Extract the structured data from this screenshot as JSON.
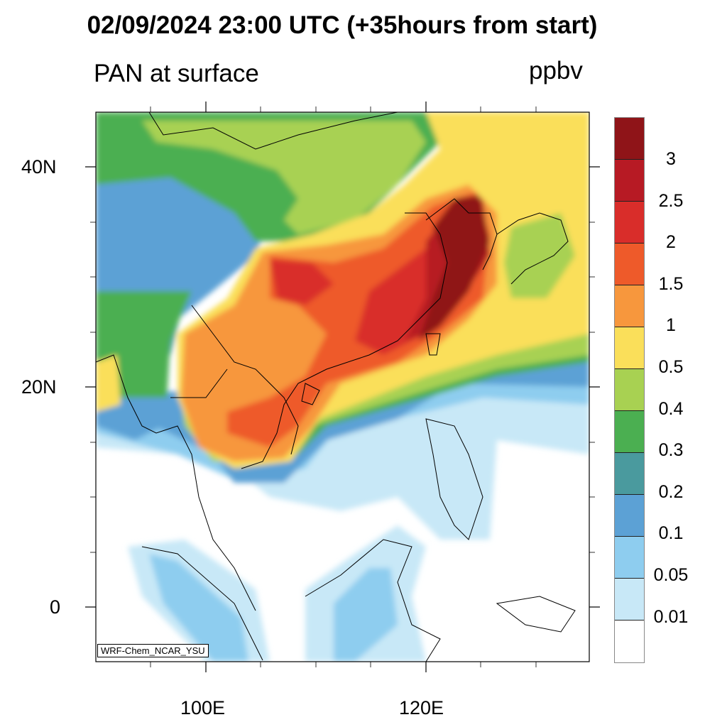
{
  "title": "02/09/2024 23:00 UTC (+35hours from start)",
  "subtitle_left": "PAN at surface",
  "subtitle_right": "ppbv",
  "model_label": "WRF-Chem_NCAR_YSU",
  "x_ticks": [
    "100E",
    "120E"
  ],
  "y_ticks": [
    "40N",
    "20N",
    "0"
  ],
  "colorbar": {
    "labels": [
      "3",
      "2.5",
      "2",
      "1.5",
      "1",
      "0.5",
      "0.4",
      "0.3",
      "0.2",
      "0.1",
      "0.05",
      "0.01"
    ],
    "colors": [
      "#8F1418",
      "#B71A24",
      "#D92D2A",
      "#EE5A2A",
      "#F7973D",
      "#FADF5A",
      "#A8D152",
      "#4BAF51",
      "#4A9A9E",
      "#5CA1D5",
      "#8ECDEF",
      "#C8E8F7",
      "#FFFFFF"
    ]
  }
}
